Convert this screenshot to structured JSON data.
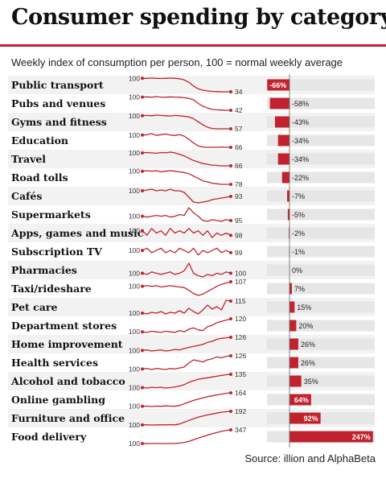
{
  "title": "Consumer spending by category",
  "subtitle": "Weekly index of consumption per person, 100 = normal weekly average",
  "source": "Source: illion and AlphaBeta",
  "colors": {
    "accent": "#c0232f",
    "row_alt": "#f2f2f2",
    "track": "#e6e6e6",
    "text": "#111111"
  },
  "chart_data": {
    "type": "bar",
    "baseline_index": 100,
    "categories": [
      "Public transport",
      "Pubs and venues",
      "Gyms and fitness",
      "Education",
      "Travel",
      "Road tolls",
      "Cafés",
      "Supermarkets",
      "Apps, games and music",
      "Subscription TV",
      "Pharmacies",
      "Taxi/rideshare",
      "Pet care",
      "Department stores",
      "Home improvement",
      "Health services",
      "Alcohol and tobacco",
      "Online gambling",
      "Furniture and office",
      "Food delivery"
    ],
    "sparkline_start_labels": [
      "100",
      "100",
      "100",
      "100",
      "100",
      "100",
      "100",
      "100",
      "100",
      "100",
      "100",
      "100",
      "100",
      "100",
      "100",
      "100",
      "100",
      "100",
      "100",
      "100"
    ],
    "sparkline_end_labels": [
      "34",
      "42",
      "57",
      "66",
      "66",
      "78",
      "93",
      "95",
      "98",
      "99",
      "100",
      "107",
      "115",
      "120",
      "126",
      "126",
      "135",
      "164",
      "192",
      "347"
    ],
    "latest_values": [
      34,
      42,
      57,
      66,
      66,
      78,
      93,
      95,
      98,
      99,
      100,
      107,
      115,
      120,
      126,
      126,
      135,
      164,
      192,
      347
    ],
    "change_labels": [
      "-66%",
      "-58%",
      "-43%",
      "-34%",
      "-34%",
      "-22%",
      "-7%",
      "-5%",
      "-2%",
      "-1%",
      "0%",
      "7%",
      "15%",
      "20%",
      "26%",
      "26%",
      "35%",
      "64%",
      "92%",
      "247%"
    ],
    "change_percent": [
      -66,
      -58,
      -43,
      -34,
      -34,
      -22,
      -7,
      -5,
      -2,
      -1,
      0,
      7,
      15,
      20,
      26,
      26,
      35,
      64,
      92,
      247
    ],
    "sparklines": [
      [
        100,
        100,
        101,
        100,
        99,
        100,
        101,
        100,
        98,
        92,
        80,
        62,
        48,
        42,
        38,
        36,
        35,
        34,
        34,
        34
      ],
      [
        100,
        101,
        99,
        102,
        100,
        99,
        101,
        100,
        99,
        97,
        94,
        88,
        72,
        60,
        52,
        46,
        44,
        43,
        42,
        42
      ],
      [
        100,
        101,
        100,
        102,
        101,
        100,
        99,
        101,
        100,
        98,
        96,
        90,
        80,
        70,
        62,
        58,
        57,
        57,
        57,
        57
      ],
      [
        100,
        101,
        104,
        99,
        101,
        103,
        100,
        99,
        101,
        97,
        88,
        78,
        70,
        67,
        66,
        66,
        66,
        67,
        66,
        66
      ],
      [
        100,
        101,
        100,
        99,
        101,
        100,
        102,
        100,
        96,
        92,
        86,
        80,
        76,
        72,
        70,
        68,
        67,
        66,
        66,
        66
      ],
      [
        100,
        101,
        100,
        101,
        99,
        100,
        101,
        100,
        99,
        98,
        96,
        92,
        88,
        84,
        82,
        80,
        79,
        78,
        78,
        78
      ],
      [
        100,
        101,
        102,
        100,
        101,
        100,
        102,
        100,
        100,
        98,
        92,
        86,
        85,
        86,
        87,
        89,
        90,
        91,
        92,
        93
      ],
      [
        100,
        99,
        100,
        101,
        100,
        101,
        99,
        100,
        102,
        101,
        110,
        104,
        100,
        95,
        94,
        96,
        95,
        94,
        96,
        95
      ],
      [
        100,
        98,
        101,
        99,
        100,
        98,
        101,
        99,
        100,
        99,
        101,
        99,
        100,
        98,
        100,
        97,
        99,
        98,
        99,
        98
      ],
      [
        100,
        101,
        99,
        100,
        101,
        99,
        100,
        99,
        101,
        100,
        99,
        101,
        98,
        100,
        99,
        100,
        101,
        99,
        100,
        99
      ],
      [
        100,
        99,
        101,
        100,
        99,
        100,
        101,
        99,
        100,
        102,
        108,
        100,
        98,
        97,
        99,
        98,
        100,
        99,
        101,
        100
      ],
      [
        100,
        101,
        100,
        101,
        99,
        100,
        101,
        100,
        99,
        98,
        94,
        89,
        86,
        88,
        92,
        96,
        100,
        103,
        105,
        107
      ],
      [
        100,
        99,
        101,
        100,
        102,
        99,
        101,
        100,
        103,
        100,
        106,
        102,
        99,
        104,
        110,
        105,
        108,
        104,
        116,
        115
      ],
      [
        100,
        99,
        101,
        100,
        99,
        101,
        100,
        99,
        102,
        100,
        104,
        106,
        103,
        102,
        108,
        110,
        114,
        116,
        118,
        120
      ],
      [
        100,
        101,
        99,
        100,
        101,
        99,
        100,
        102,
        101,
        104,
        106,
        108,
        110,
        112,
        116,
        118,
        122,
        124,
        125,
        126
      ],
      [
        100,
        101,
        99,
        101,
        100,
        99,
        101,
        100,
        102,
        104,
        112,
        118,
        116,
        114,
        118,
        120,
        124,
        122,
        125,
        126
      ],
      [
        100,
        99,
        101,
        100,
        101,
        99,
        100,
        102,
        104,
        108,
        114,
        118,
        122,
        124,
        126,
        128,
        130,
        132,
        134,
        135
      ],
      [
        100,
        101,
        99,
        101,
        100,
        102,
        101,
        100,
        104,
        112,
        120,
        128,
        134,
        140,
        146,
        150,
        154,
        158,
        162,
        164
      ],
      [
        100,
        101,
        99,
        100,
        101,
        100,
        102,
        100,
        106,
        118,
        130,
        142,
        152,
        160,
        168,
        174,
        180,
        186,
        190,
        192
      ],
      [
        100,
        101,
        100,
        102,
        101,
        100,
        101,
        103,
        108,
        120,
        140,
        168,
        198,
        226,
        252,
        276,
        300,
        320,
        338,
        347
      ]
    ]
  }
}
